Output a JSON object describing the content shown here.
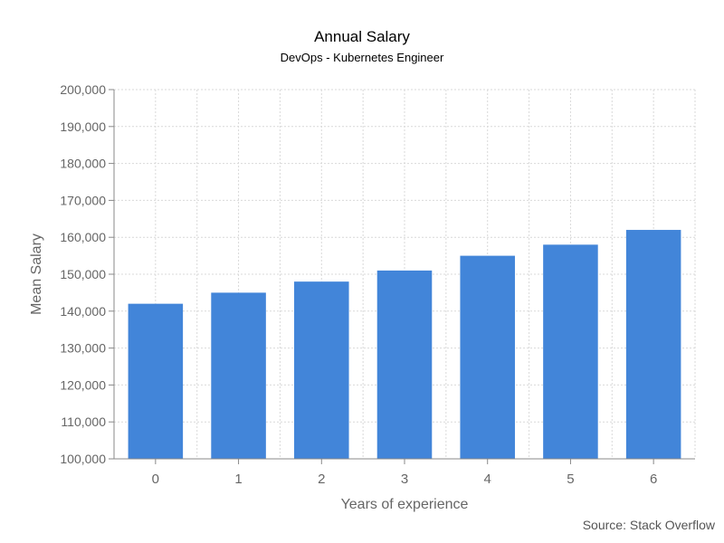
{
  "colors": {
    "bar": "#4285d9",
    "axis": "#888888",
    "grid": "#d9d9d9",
    "text": "#666666"
  },
  "source": "Source: Stack Overflow",
  "chart_data": {
    "type": "bar",
    "title": "Annual Salary",
    "subtitle": "DevOps - Kubernetes Engineer",
    "xlabel": "Years of experience",
    "ylabel": "Mean Salary",
    "categories": [
      "0",
      "1",
      "2",
      "3",
      "4",
      "5",
      "6"
    ],
    "values": [
      142000,
      145000,
      148000,
      151000,
      155000,
      158000,
      162000
    ],
    "ylim": [
      100000,
      200000
    ],
    "yticks": [
      "100,000",
      "110,000",
      "120,000",
      "130,000",
      "140,000",
      "150,000",
      "160,000",
      "170,000",
      "180,000",
      "190,000",
      "200,000"
    ],
    "grid": true,
    "legend": "none"
  }
}
